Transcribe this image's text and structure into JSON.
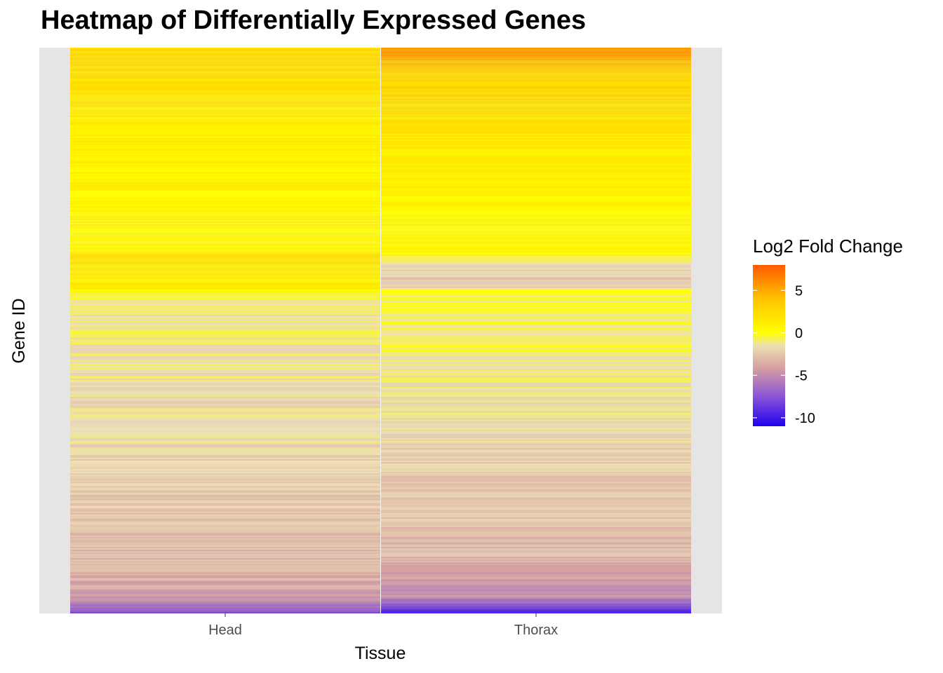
{
  "chart_data": {
    "type": "heatmap",
    "title": "Heatmap of Differentially Expressed Genes",
    "xlabel": "Tissue",
    "ylabel": "Gene ID",
    "categories": [
      "Head",
      "Thorax"
    ],
    "y_tick_labels": "hidden",
    "gene_rows_approx": 400,
    "legend": {
      "title": "Log2 Fold Change",
      "position": "right",
      "range": [
        -11,
        8
      ],
      "ticks": [
        5,
        0,
        -5,
        -10
      ],
      "colors": {
        "low": "#2200ee",
        "mid_low": "#d69ea0",
        "mid": "#ffff00",
        "high": "#ff5500"
      },
      "gradient_stops": [
        {
          "value": -11,
          "color": "#2000ee"
        },
        {
          "value": -7.5,
          "color": "#8a55d6"
        },
        {
          "value": -4,
          "color": "#d8a2a0"
        },
        {
          "value": -1.5,
          "color": "#ece0b4"
        },
        {
          "value": 0,
          "color": "#ffff00"
        },
        {
          "value": 4,
          "color": "#ffc400"
        },
        {
          "value": 8,
          "color": "#ff5a00"
        }
      ]
    },
    "series": [
      {
        "name": "Head",
        "row_value_profile": [
          {
            "row_fraction": 0.0,
            "value": 2.5
          },
          {
            "row_fraction": 0.04,
            "value": 2.0
          },
          {
            "row_fraction": 0.15,
            "value": 1.0
          },
          {
            "row_fraction": 0.36,
            "value": 0.3
          },
          {
            "row_fraction": 0.37,
            "value": 1.8
          },
          {
            "row_fraction": 0.43,
            "value": 0.6
          },
          {
            "row_fraction": 0.44,
            "value": -1.0
          },
          {
            "row_fraction": 0.6,
            "value": -1.5
          },
          {
            "row_fraction": 0.8,
            "value": -2.3
          },
          {
            "row_fraction": 0.92,
            "value": -3.2
          },
          {
            "row_fraction": 0.98,
            "value": -4.5
          },
          {
            "row_fraction": 1.0,
            "value": -8.0
          }
        ]
      },
      {
        "name": "Thorax",
        "row_value_profile": [
          {
            "row_fraction": 0.0,
            "value": 5.5
          },
          {
            "row_fraction": 0.05,
            "value": 3.0
          },
          {
            "row_fraction": 0.15,
            "value": 1.5
          },
          {
            "row_fraction": 0.37,
            "value": 0.2
          },
          {
            "row_fraction": 0.38,
            "value": -1.8
          },
          {
            "row_fraction": 0.42,
            "value": -2.5
          },
          {
            "row_fraction": 0.43,
            "value": -0.5
          },
          {
            "row_fraction": 0.6,
            "value": -1.3
          },
          {
            "row_fraction": 0.75,
            "value": -2.2
          },
          {
            "row_fraction": 0.9,
            "value": -3.2
          },
          {
            "row_fraction": 0.97,
            "value": -5.0
          },
          {
            "row_fraction": 1.0,
            "value": -9.0
          }
        ]
      }
    ]
  }
}
